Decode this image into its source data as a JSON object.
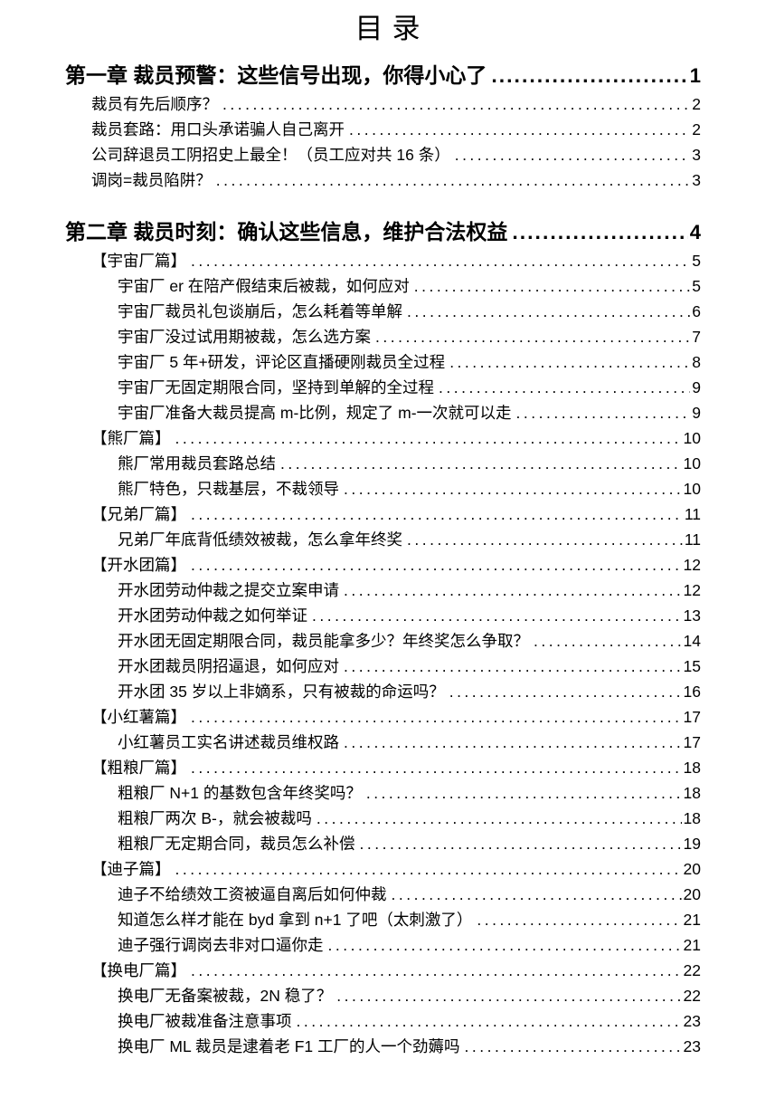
{
  "page": {
    "title": "目录"
  },
  "toc": {
    "rows": [
      {
        "level": 1,
        "text": "第一章 裁员预警：这些信号出现，你得小心了",
        "page": "1"
      },
      {
        "level": 2,
        "text": "裁员有先后顺序？",
        "page": "2"
      },
      {
        "level": 2,
        "text": "裁员套路：用口头承诺骗人自己离开",
        "page": "2"
      },
      {
        "level": 2,
        "text": "公司辞退员工阴招史上最全！（员工应对共 16 条）",
        "page": "3"
      },
      {
        "level": 2,
        "text": "调岗=裁员陷阱？",
        "page": "3"
      },
      {
        "level": 1,
        "text": "第二章 裁员时刻：确认这些信息，维护合法权益",
        "page": "4"
      },
      {
        "level": 2,
        "text": "【宇宙厂篇】",
        "page": "5"
      },
      {
        "level": 3,
        "text": "宇宙厂 er 在陪产假结束后被裁，如何应对",
        "page": "5"
      },
      {
        "level": 3,
        "text": "宇宙厂裁员礼包谈崩后，怎么耗着等单解",
        "page": "6"
      },
      {
        "level": 3,
        "text": "宇宙厂没过试用期被裁，怎么选方案",
        "page": "7"
      },
      {
        "level": 3,
        "text": "宇宙厂 5 年+研发，评论区直播硬刚裁员全过程",
        "page": "8"
      },
      {
        "level": 3,
        "text": "宇宙厂无固定期限合同，坚持到单解的全过程",
        "page": "9"
      },
      {
        "level": 3,
        "text": "宇宙厂准备大裁员提高 m-比例，规定了 m-一次就可以走",
        "page": "9"
      },
      {
        "level": 2,
        "text": "【熊厂篇】",
        "page": "10"
      },
      {
        "level": 3,
        "text": "熊厂常用裁员套路总结",
        "page": "10"
      },
      {
        "level": 3,
        "text": "熊厂特色，只裁基层，不裁领导",
        "page": "10"
      },
      {
        "level": 2,
        "text": "【兄弟厂篇】",
        "page": "11"
      },
      {
        "level": 3,
        "text": "兄弟厂年底背低绩效被裁，怎么拿年终奖",
        "page": "11"
      },
      {
        "level": 2,
        "text": "【开水团篇】",
        "page": "12"
      },
      {
        "level": 3,
        "text": "开水团劳动仲裁之提交立案申请",
        "page": "12"
      },
      {
        "level": 3,
        "text": "开水团劳动仲裁之如何举证",
        "page": "13"
      },
      {
        "level": 3,
        "text": "开水团无固定期限合同，裁员能拿多少？年终奖怎么争取？",
        "page": "14"
      },
      {
        "level": 3,
        "text": "开水团裁员阴招逼退，如何应对",
        "page": "15"
      },
      {
        "level": 3,
        "text": "开水团 35 岁以上非嫡系，只有被裁的命运吗？",
        "page": "16"
      },
      {
        "level": 2,
        "text": "【小红薯篇】",
        "page": "17"
      },
      {
        "level": 3,
        "text": "小红薯员工实名讲述裁员维权路",
        "page": "17"
      },
      {
        "level": 2,
        "text": "【粗粮厂篇】",
        "page": "18"
      },
      {
        "level": 3,
        "text": "粗粮厂 N+1 的基数包含年终奖吗？",
        "page": "18"
      },
      {
        "level": 3,
        "text": "粗粮厂两次 B-，就会被裁吗",
        "page": "18"
      },
      {
        "level": 3,
        "text": "粗粮厂无定期合同，裁员怎么补偿",
        "page": "19"
      },
      {
        "level": 2,
        "text": "【迪子篇】",
        "page": "20"
      },
      {
        "level": 3,
        "text": "迪子不给绩效工资被逼自离后如何仲裁",
        "page": "20"
      },
      {
        "level": 3,
        "text": "知道怎么样才能在 byd 拿到 n+1 了吧（太刺激了）",
        "page": "21"
      },
      {
        "level": 3,
        "text": "迪子强行调岗去非对口逼你走",
        "page": "21"
      },
      {
        "level": 2,
        "text": "【换电厂篇】",
        "page": "22"
      },
      {
        "level": 3,
        "text": "换电厂无备案被裁，2N 稳了？",
        "page": "22"
      },
      {
        "level": 3,
        "text": "换电厂被裁准备注意事项",
        "page": "23"
      },
      {
        "level": 3,
        "text": "换电厂 ML 裁员是逮着老 F1 工厂的人一个劲薅吗",
        "page": "23"
      }
    ]
  }
}
